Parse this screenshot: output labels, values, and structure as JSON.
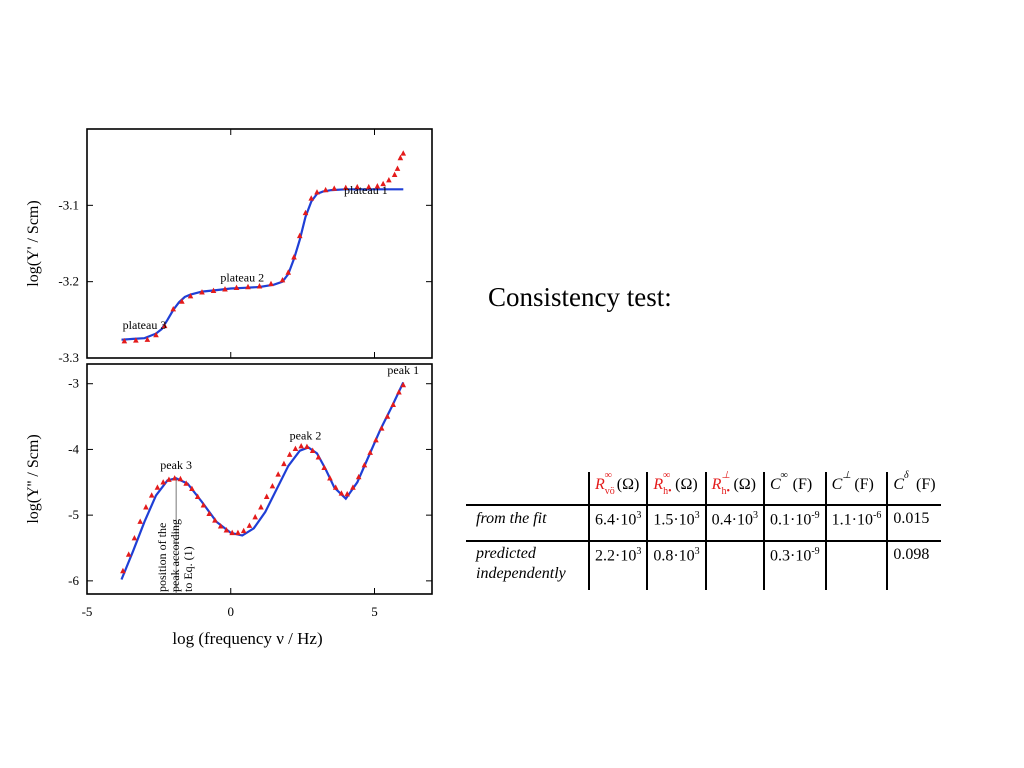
{
  "chart_data": [
    {
      "type": "line",
      "name": "real-admittance-chart",
      "xlabel": "",
      "ylabel": "log(Y' / Scm)",
      "xlim": [
        -5,
        7
      ],
      "ylim": [
        -3.3,
        -3.0
      ],
      "yticks": [
        -3.1,
        -3.2,
        -3.3
      ],
      "ytick_labels": [
        "-3.1",
        "-3.2",
        "-3.3"
      ],
      "grid": false,
      "annotations": [
        {
          "text": "plateau 1",
          "x": 4.7,
          "y": -3.085
        },
        {
          "text": "plateau 2",
          "x": 0.4,
          "y": -3.2
        },
        {
          "text": "plateau 3",
          "x": -3.0,
          "y": -3.262
        }
      ],
      "series": [
        {
          "color": "#1f3fd6",
          "style": "line",
          "x": [
            -3.8,
            -3.4,
            -3.0,
            -2.6,
            -2.4,
            -2.2,
            -2.0,
            -1.8,
            -1.6,
            -1.4,
            -1.0,
            -0.5,
            0.0,
            0.5,
            1.0,
            1.5,
            1.8,
            2.0,
            2.2,
            2.4,
            2.6,
            2.8,
            3.0,
            3.2,
            3.5,
            4.0,
            4.5,
            5.0,
            5.5,
            6.0
          ],
          "y": [
            -3.276,
            -3.275,
            -3.274,
            -3.268,
            -3.262,
            -3.25,
            -3.237,
            -3.227,
            -3.22,
            -3.217,
            -3.213,
            -3.211,
            -3.209,
            -3.208,
            -3.207,
            -3.204,
            -3.2,
            -3.19,
            -3.17,
            -3.145,
            -3.115,
            -3.095,
            -3.085,
            -3.082,
            -3.08,
            -3.079,
            -3.079,
            -3.079,
            -3.079,
            -3.079
          ]
        },
        {
          "color": "#e41b1b",
          "style": "triangles",
          "x": [
            -3.7,
            -3.3,
            -2.9,
            -2.6,
            -2.3,
            -2.0,
            -1.7,
            -1.4,
            -1.0,
            -0.6,
            -0.2,
            0.2,
            0.6,
            1.0,
            1.4,
            1.8,
            2.0,
            2.2,
            2.4,
            2.6,
            2.8,
            3.0,
            3.3,
            3.6,
            4.0,
            4.4,
            4.8,
            5.1,
            5.3,
            5.5,
            5.7,
            5.8,
            5.9,
            6.0
          ],
          "y": [
            -3.278,
            -3.277,
            -3.276,
            -3.27,
            -3.258,
            -3.236,
            -3.226,
            -3.219,
            -3.214,
            -3.212,
            -3.21,
            -3.208,
            -3.207,
            -3.206,
            -3.203,
            -3.198,
            -3.188,
            -3.168,
            -3.14,
            -3.11,
            -3.091,
            -3.083,
            -3.08,
            -3.078,
            -3.077,
            -3.076,
            -3.076,
            -3.075,
            -3.072,
            -3.067,
            -3.06,
            -3.052,
            -3.038,
            -3.032
          ]
        }
      ]
    },
    {
      "type": "line",
      "name": "imaginary-admittance-chart",
      "xlabel": "log (frequency ν / Hz)",
      "ylabel": "log(Y'' / Scm)",
      "xlim": [
        -5,
        7
      ],
      "ylim": [
        -6.2,
        -2.7
      ],
      "xticks": [
        -5,
        0,
        5
      ],
      "xtick_labels": [
        "-5",
        "0",
        "5"
      ],
      "yticks": [
        -3,
        -4,
        -5,
        -6
      ],
      "ytick_labels": [
        "-3",
        "-4",
        "-5",
        "-6"
      ],
      "grid": false,
      "annotations": [
        {
          "text": "peak 1",
          "x": 6.0,
          "y": -2.85
        },
        {
          "text": "peak 2",
          "x": 2.6,
          "y": -3.85
        },
        {
          "text": "peak 3",
          "x": -1.9,
          "y": -4.3
        }
      ],
      "vertical_marker": {
        "x": -1.9,
        "text_lines": [
          "position of the",
          "peak according",
          "to Eq. (1)"
        ]
      },
      "series": [
        {
          "color": "#1f3fd6",
          "style": "line",
          "x": [
            -3.8,
            -3.4,
            -3.0,
            -2.6,
            -2.2,
            -1.9,
            -1.5,
            -1.0,
            -0.5,
            0.0,
            0.4,
            0.8,
            1.2,
            1.6,
            2.0,
            2.4,
            2.7,
            3.0,
            3.3,
            3.6,
            4.0,
            4.4,
            4.8,
            5.2,
            5.6,
            6.0
          ],
          "y": [
            -5.98,
            -5.55,
            -5.1,
            -4.7,
            -4.47,
            -4.44,
            -4.52,
            -4.8,
            -5.1,
            -5.27,
            -5.31,
            -5.2,
            -4.95,
            -4.6,
            -4.25,
            -4.02,
            -3.97,
            -4.06,
            -4.3,
            -4.58,
            -4.75,
            -4.5,
            -4.1,
            -3.7,
            -3.35,
            -2.98
          ]
        },
        {
          "color": "#e41b1b",
          "style": "triangles",
          "x": [
            -3.75,
            -3.55,
            -3.35,
            -3.15,
            -2.95,
            -2.75,
            -2.55,
            -2.35,
            -2.15,
            -1.95,
            -1.75,
            -1.55,
            -1.35,
            -1.15,
            -0.95,
            -0.75,
            -0.55,
            -0.35,
            -0.15,
            0.05,
            0.25,
            0.45,
            0.65,
            0.85,
            1.05,
            1.25,
            1.45,
            1.65,
            1.85,
            2.05,
            2.25,
            2.45,
            2.65,
            2.85,
            3.05,
            3.25,
            3.45,
            3.65,
            3.85,
            4.05,
            4.25,
            4.45,
            4.65,
            4.85,
            5.05,
            5.25,
            5.45,
            5.65,
            5.85,
            6.0
          ],
          "y": [
            -5.85,
            -5.6,
            -5.35,
            -5.1,
            -4.88,
            -4.7,
            -4.58,
            -4.5,
            -4.46,
            -4.44,
            -4.45,
            -4.52,
            -4.6,
            -4.72,
            -4.85,
            -4.98,
            -5.08,
            -5.17,
            -5.23,
            -5.27,
            -5.27,
            -5.24,
            -5.16,
            -5.03,
            -4.88,
            -4.72,
            -4.56,
            -4.38,
            -4.22,
            -4.08,
            -3.99,
            -3.95,
            -3.96,
            -4.02,
            -4.12,
            -4.28,
            -4.44,
            -4.58,
            -4.67,
            -4.68,
            -4.58,
            -4.42,
            -4.24,
            -4.05,
            -3.86,
            -3.68,
            -3.5,
            -3.32,
            -3.13,
            -3.02
          ]
        }
      ]
    }
  ],
  "heading": "Consistency test:",
  "table": {
    "headers": [
      {
        "sym": "R",
        "sup": "∞",
        "sub": "vö",
        "unit": "(Ω)",
        "red": true
      },
      {
        "sym": "R",
        "sup": "∞",
        "sub": "h•",
        "unit": "(Ω)",
        "red": true
      },
      {
        "sym": "R",
        "sup": "⊥",
        "sub": "h•",
        "unit": "(Ω)",
        "red": true
      },
      {
        "sym": "C",
        "sup": "∞",
        "sub": "",
        "unit": "(F)",
        "red": false
      },
      {
        "sym": "C",
        "sup": "⊥",
        "sub": "",
        "unit": "(F)",
        "red": false
      },
      {
        "sym": "C",
        "sup": "δ",
        "sub": "",
        "unit": "(F)",
        "red": false
      }
    ],
    "rows": [
      {
        "label": "from the fit",
        "cells": [
          {
            "base": "6.4·10",
            "exp": "3"
          },
          {
            "base": "1.5·10",
            "exp": "3"
          },
          {
            "base": "0.4·10",
            "exp": "3"
          },
          {
            "base": "0.1·10",
            "exp": "-9"
          },
          {
            "base": "1.1·10",
            "exp": "-6"
          },
          {
            "base": "0.015",
            "exp": ""
          }
        ]
      },
      {
        "label": "predicted independently",
        "cells": [
          {
            "base": "2.2·10",
            "exp": "3"
          },
          {
            "base": "0.8·10",
            "exp": "3"
          },
          {
            "base": "",
            "exp": ""
          },
          {
            "base": "0.3·10",
            "exp": "-9"
          },
          {
            "base": "",
            "exp": ""
          },
          {
            "base": "0.098",
            "exp": ""
          }
        ]
      }
    ]
  }
}
